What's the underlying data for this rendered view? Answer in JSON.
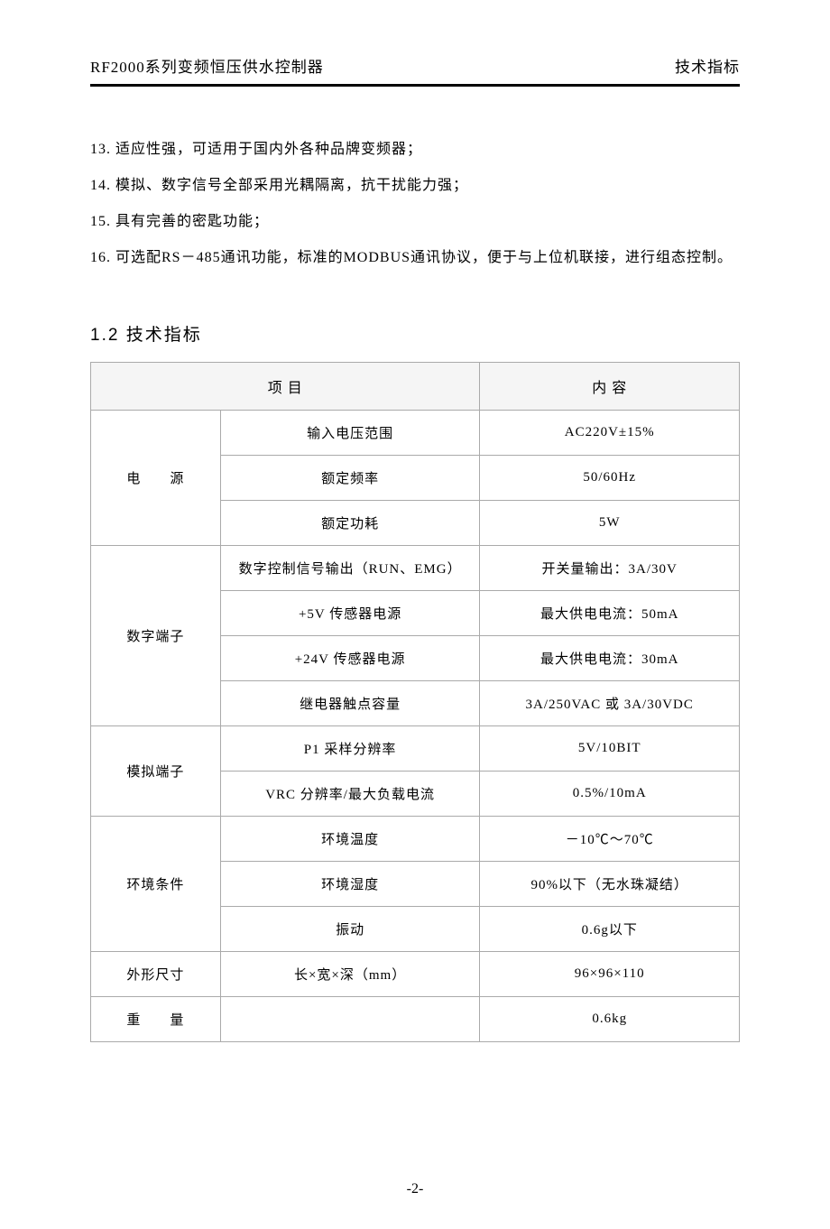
{
  "header": {
    "left": "RF2000系列变频恒压供水控制器",
    "right": "技术指标"
  },
  "list": {
    "item13": "13. 适应性强，可适用于国内外各种品牌变频器；",
    "item14": "14. 模拟、数字信号全部采用光耦隔离，抗干扰能力强；",
    "item15": "15. 具有完善的密匙功能；",
    "item16": "16. 可选配RS－485通讯功能，标准的MODBUS通讯协议，便于与上位机联接，进行组态控制。"
  },
  "section": {
    "title": "1.2  技术指标"
  },
  "table": {
    "header_item": "项  目",
    "header_content": "内  容",
    "rows": {
      "power": {
        "category": "电　　源",
        "r1p": "输入电压范围",
        "r1v": "AC220V±15%",
        "r2p": "额定频率",
        "r2v": "50/60Hz",
        "r3p": "额定功耗",
        "r3v": "5W"
      },
      "digital": {
        "category": "数字端子",
        "r1p": "数字控制信号输出（RUN、EMG）",
        "r1v": "开关量输出：3A/30V",
        "r2p": "+5V 传感器电源",
        "r2v": "最大供电电流：50mA",
        "r3p": "+24V 传感器电源",
        "r3v": "最大供电电流：30mA",
        "r4p": "继电器触点容量",
        "r4v": "3A/250VAC 或 3A/30VDC"
      },
      "analog": {
        "category": "模拟端子",
        "r1p": "P1 采样分辨率",
        "r1v": "5V/10BIT",
        "r2p": "VRC 分辨率/最大负载电流",
        "r2v": "0.5%/10mA"
      },
      "env": {
        "category": "环境条件",
        "r1p": "环境温度",
        "r1v": "－10℃～70℃",
        "r2p": "环境湿度",
        "r2v": "90%以下（无水珠凝结）",
        "r3p": "振动",
        "r3v": "0.6g以下"
      },
      "size": {
        "category": "外形尺寸",
        "r1p": "长×宽×深（mm）",
        "r1v": "96×96×110"
      },
      "weight": {
        "category": "重　　量",
        "r1p": "",
        "r1v": "0.6kg"
      }
    }
  },
  "page": "-2-",
  "colors": {
    "text": "#000000",
    "border": "#999999",
    "header_bg": "#f5f5f5",
    "bg": "#ffffff"
  },
  "typography": {
    "body_fontsize": 16,
    "header_fontsize": 17,
    "section_fontsize": 19,
    "table_fontsize": 15
  }
}
